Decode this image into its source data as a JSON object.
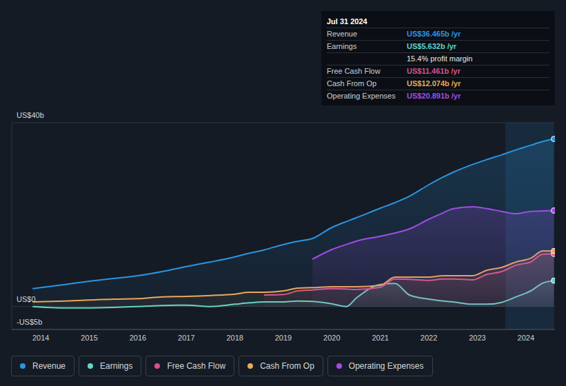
{
  "chart_data": {
    "type": "area",
    "x": [
      2013.83,
      2014.5,
      2015,
      2015.5,
      2016,
      2016.5,
      2017,
      2017.5,
      2018,
      2018.3,
      2018.6,
      2019,
      2019.3,
      2019.6,
      2020,
      2020.3,
      2020.5,
      2021,
      2021.3,
      2021.6,
      2022,
      2022.3,
      2022.5,
      2022.9,
      2023.2,
      2023.5,
      2023.8,
      2024.1,
      2024.35,
      2024.58
    ],
    "series": [
      {
        "name": "Revenue",
        "color": "#2b95e0",
        "values": [
          3.9,
          4.8,
          5.5,
          6.1,
          6.7,
          7.6,
          8.7,
          9.7,
          10.8,
          11.6,
          12.3,
          13.5,
          14.2,
          14.8,
          17.2,
          18.5,
          19.3,
          21.4,
          22.6,
          24.0,
          26.5,
          28.2,
          29.2,
          30.9,
          32.0,
          33.0,
          34.1,
          35.1,
          35.9,
          36.465
        ]
      },
      {
        "name": "Earnings",
        "color": "#62d5c9",
        "values": [
          0.0,
          -0.3,
          -0.3,
          -0.2,
          0.0,
          0.2,
          0.3,
          0.0,
          0.5,
          0.8,
          1.0,
          1.0,
          1.2,
          1.1,
          0.6,
          0.0,
          1.8,
          4.8,
          5.0,
          2.5,
          1.6,
          1.2,
          1.0,
          0.5,
          0.5,
          0.9,
          2.1,
          3.4,
          5.1,
          5.632
        ]
      },
      {
        "name": "Free Cash Flow",
        "color": "#d9508c",
        "values": [
          null,
          null,
          null,
          null,
          null,
          null,
          null,
          null,
          null,
          null,
          2.5,
          2.6,
          3.4,
          3.6,
          3.9,
          3.8,
          3.7,
          4.2,
          6.0,
          5.9,
          5.7,
          6.0,
          6.0,
          5.8,
          7.0,
          7.6,
          9.0,
          9.7,
          11.4,
          11.461
        ]
      },
      {
        "name": "Cash From Op",
        "color": "#eaa95a",
        "values": [
          1.0,
          1.2,
          1.4,
          1.6,
          1.7,
          2.1,
          2.2,
          2.4,
          2.7,
          3.1,
          3.1,
          3.4,
          4.0,
          4.1,
          4.3,
          4.3,
          4.3,
          4.6,
          6.4,
          6.4,
          6.4,
          6.7,
          6.7,
          6.7,
          7.9,
          8.5,
          9.7,
          10.5,
          12.1,
          12.074
        ]
      },
      {
        "name": "Operating Expenses",
        "color": "#a24ce6",
        "values": [
          null,
          null,
          null,
          null,
          null,
          null,
          null,
          null,
          null,
          null,
          null,
          null,
          null,
          10.3,
          12.4,
          13.5,
          14.2,
          15.3,
          16.0,
          16.9,
          19.0,
          20.4,
          21.3,
          21.7,
          21.3,
          20.7,
          20.2,
          20.7,
          20.8,
          20.891
        ]
      }
    ],
    "xlim": [
      2013.4,
      2024.6
    ],
    "xticks": [
      2014,
      2015,
      2016,
      2017,
      2018,
      2019,
      2020,
      2021,
      2022,
      2023,
      2024
    ],
    "ylim": [
      -5,
      40
    ],
    "yticks": [
      {
        "value": -5,
        "label": "-US$5b"
      },
      {
        "value": 0,
        "label": "US$0"
      },
      {
        "value": 40,
        "label": "US$40b"
      }
    ],
    "grid": true,
    "legend": "bottom",
    "shaded_range": [
      2023.58,
      2024.58
    ],
    "tooltip": {
      "title": "Jul 31 2024",
      "rows": [
        {
          "label": "Revenue",
          "value": "US$36.465b /yr",
          "color": "#2b95e0"
        },
        {
          "label": "Earnings",
          "value": "US$5.632b /yr",
          "color": "#62d5c9"
        },
        {
          "value": "15.4% profit margin",
          "color": "#e8e8e8"
        },
        {
          "label": "Free Cash Flow",
          "value": "US$11.461b /yr",
          "color": "#d9508c"
        },
        {
          "label": "Cash From Op",
          "value": "US$12.074b /yr",
          "color": "#eaa95a"
        },
        {
          "label": "Operating Expenses",
          "value": "US$20.891b /yr",
          "color": "#a24ce6"
        }
      ]
    }
  }
}
